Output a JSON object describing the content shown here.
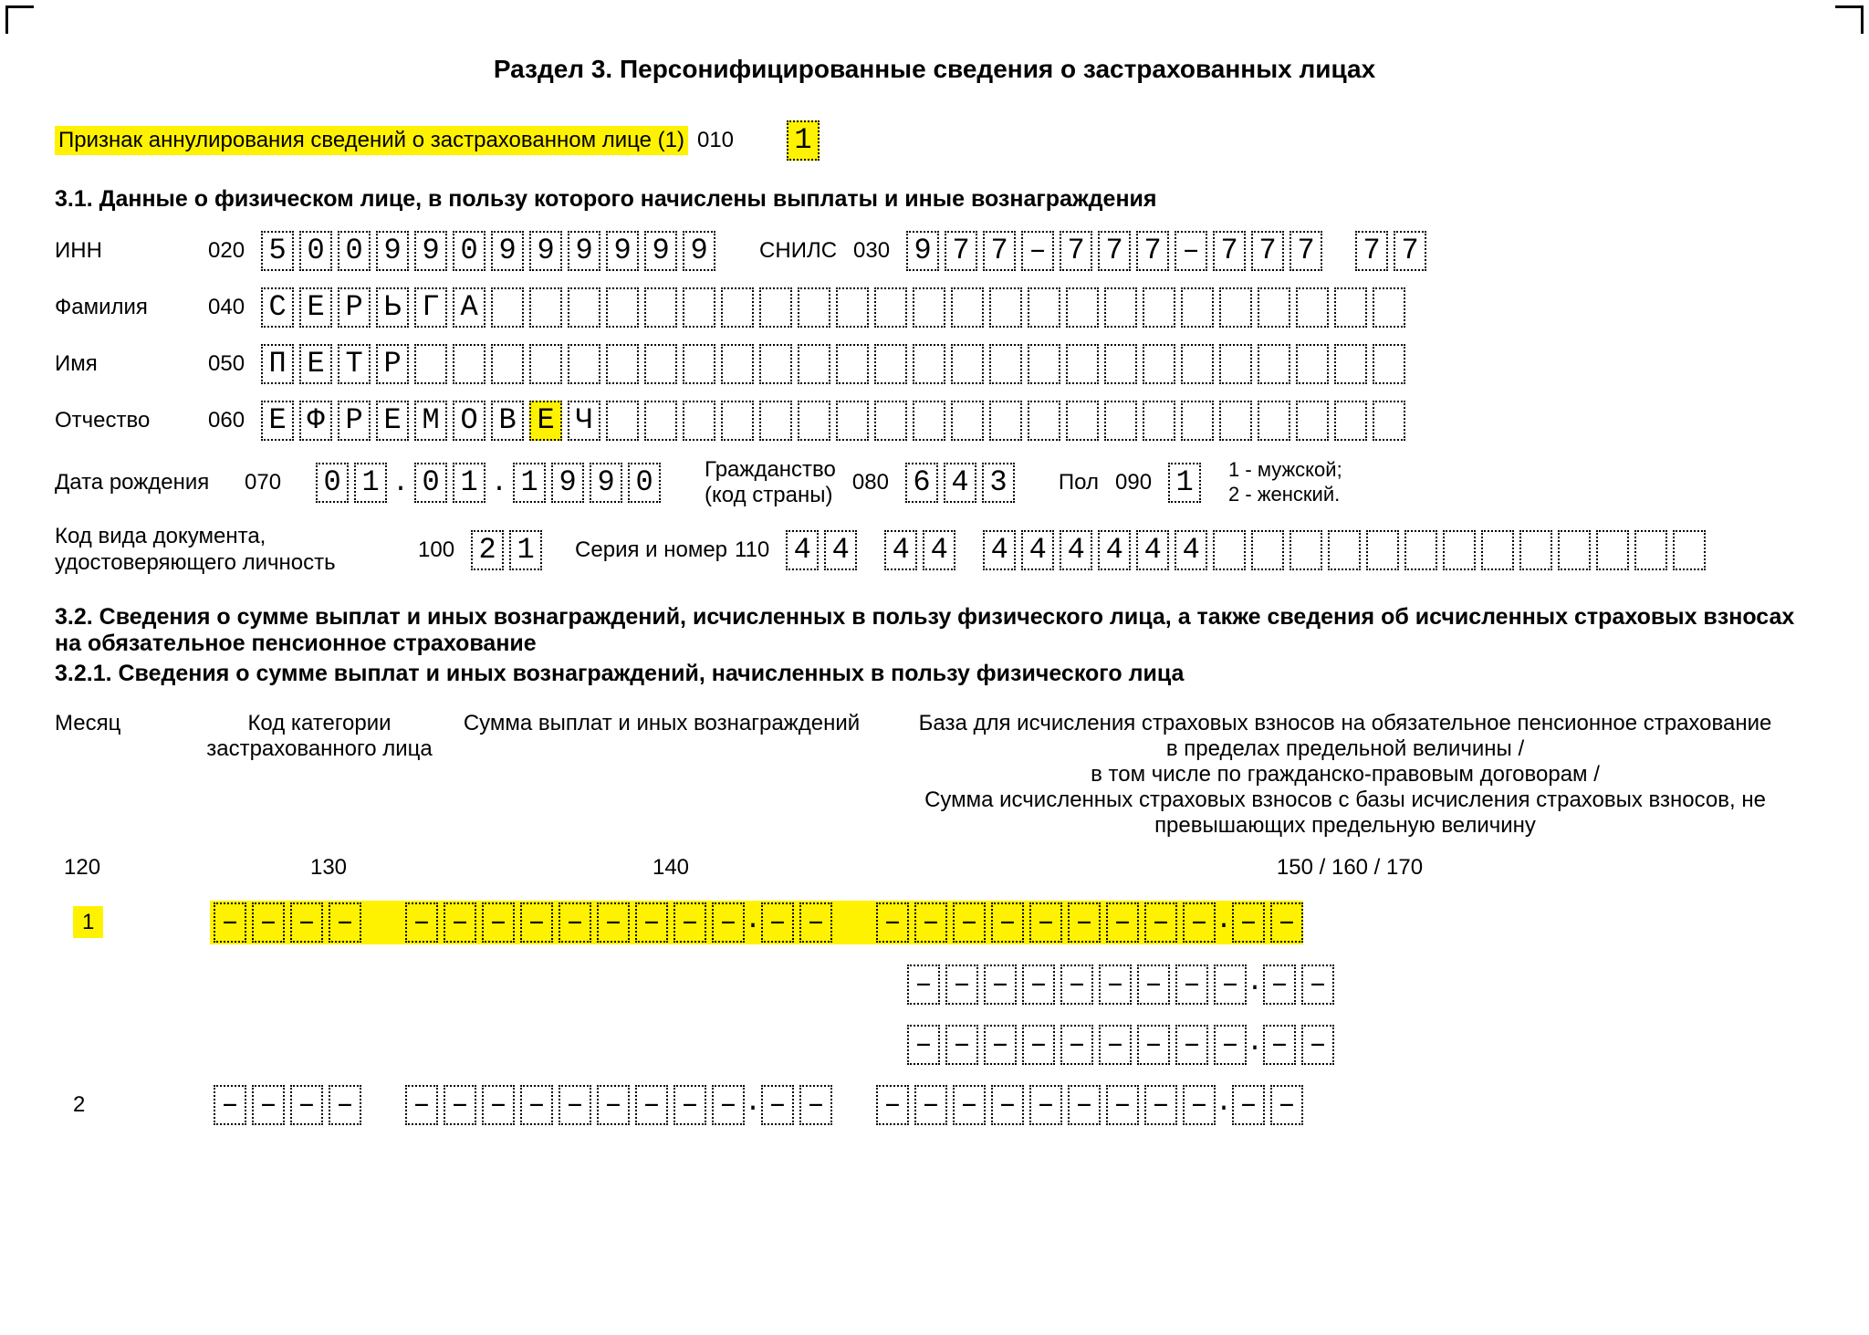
{
  "title": "Раздел 3. Персонифицированные сведения о застрахованных лицах",
  "annul": {
    "label": "Признак аннулирования сведений о застрахованном лице (1)",
    "code": "010",
    "value": "1"
  },
  "section31_head": "3.1. Данные о физическом лице, в пользу которого начислены выплаты и иные вознаграждения",
  "inn": {
    "label": "ИНН",
    "code": "020",
    "cells": [
      "5",
      "0",
      "0",
      "9",
      "9",
      "0",
      "9",
      "9",
      "9",
      "9",
      "9",
      "9"
    ]
  },
  "snils": {
    "label": "СНИЛС",
    "code": "030",
    "cells": [
      "9",
      "7",
      "7",
      "–",
      "7",
      "7",
      "7",
      "–",
      "7",
      "7",
      "7",
      "",
      "7",
      "7"
    ]
  },
  "fam": {
    "label": "Фамилия",
    "code": "040",
    "value": "СЕРЬГА",
    "len": 30
  },
  "name": {
    "label": "Имя",
    "code": "050",
    "value": "ПЕТР",
    "len": 30
  },
  "otch": {
    "label": "Отчество",
    "code": "060",
    "value": "ЕФРЕМОВЕЧ",
    "hl_index": 7,
    "len": 30
  },
  "dob": {
    "label": "Дата рождения",
    "code": "070",
    "cells": [
      "0",
      "1",
      ".",
      "0",
      "1",
      ".",
      "1",
      "9",
      "9",
      "0"
    ]
  },
  "citizen": {
    "label": "Гражданство",
    "sublabel": "(код страны)",
    "code": "080",
    "cells": [
      "6",
      "4",
      "3"
    ]
  },
  "sex": {
    "label": "Пол",
    "code": "090",
    "value": "1",
    "note1": "1 - мужской;",
    "note2": "2 - женский."
  },
  "doc_type": {
    "label1": "Код вида документа,",
    "label2": "удостоверяющего личность",
    "code": "100",
    "cells": [
      "2",
      "1"
    ]
  },
  "doc_num": {
    "label": "Серия и номер",
    "code": "110",
    "cells": [
      "4",
      "4",
      "",
      "4",
      "4",
      "",
      "4",
      "4",
      "4",
      "4",
      "4",
      "4",
      "",
      "",
      "",
      "",
      "",
      "",
      "",
      "",
      "",
      "",
      "",
      "",
      ""
    ]
  },
  "section32_head": "3.2. Сведения о сумме выплат и иных вознаграждений, исчисленных в пользу физического лица, а также сведения об исчисленных страховых взносах на обязательное пенсионное страхование",
  "section321_head": "3.2.1. Сведения о сумме выплат и иных вознаграждений, начисленных в пользу физического лица",
  "table": {
    "h_month": "Месяц",
    "h_cat": "Код категории застрахованного лица",
    "h_sum": "Сумма выплат и иных вознаграждений",
    "h_base": "База для исчисления страховых взносов на обязательное пенсионное страхование в пределах предельной величины /\nв том числе по гражданско-правовым договорам /\nСумма исчисленных страховых взносов с базы исчисления страховых взносов, не превышающих предельную величину",
    "c_month": "120",
    "c_cat": "130",
    "c_sum": "140",
    "c_base": "150 / 160 / 170",
    "m1": "1",
    "m2": "2"
  },
  "colors": {
    "highlight": "#fff200",
    "text": "#000000",
    "bg": "#ffffff"
  }
}
